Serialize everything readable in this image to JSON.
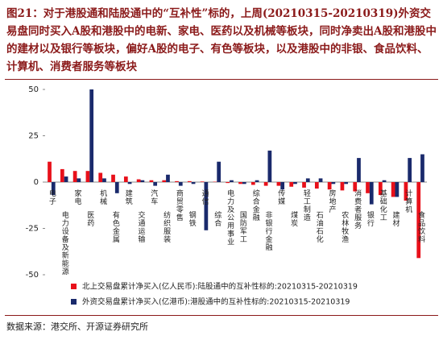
{
  "chart_data": {
    "type": "bar",
    "title": "图21：对于港股通和陆股通中的“互补性”标的，上周(20210315-20210319)外资交易盘同时买入A股和港股中的电新、家电、医药以及机械等板块，同时净卖出A股和港股中的建材以及银行等板块，偏好A股的电子、有色等板块，以及港股中的非银、食品饮料、计算机、消费者服务等板块",
    "categories": [
      "电子",
      "电力设备及新能源",
      "家电",
      "医药",
      "机械",
      "有色金属",
      "建筑",
      "交通运输",
      "汽车",
      "纺织服装",
      "商贸零售",
      "钢铁",
      "通信",
      "综合",
      "电力及公用事业",
      "国防军工",
      "综合金融",
      "非银行金融",
      "传媒",
      "煤炭",
      "轻工制造",
      "石油石化",
      "房地产",
      "农林牧渔",
      "消费者服务",
      "银行",
      "基础化工",
      "建材",
      "计算机",
      "食品饮料"
    ],
    "series": [
      {
        "name": "北上交易盘累计净买入(亿人民币):陆股通中的互补性标的:20210315-20210319",
        "color": "#e8101a",
        "values": [
          11,
          7,
          6,
          6,
          5,
          4,
          3,
          1.5,
          1,
          1,
          0.5,
          0.5,
          0.3,
          0.2,
          -0.5,
          -1,
          -1.5,
          -2,
          -2,
          -2.5,
          -3,
          -3.5,
          -4,
          -4.5,
          -5,
          -6,
          -7,
          -8,
          -10,
          -41
        ]
      },
      {
        "name": "外资交易盘累计净买入(亿港币):港股通中的互补性标的:20210315-20210319",
        "color": "#1a2a6c",
        "values": [
          -7,
          3,
          2,
          50,
          2,
          -6,
          -1,
          1,
          -2,
          4,
          -2,
          -1,
          -26,
          11,
          1,
          -1,
          1,
          17,
          -4,
          -1,
          2,
          2,
          -1,
          -1,
          13,
          -12,
          1,
          -8,
          13,
          15
        ]
      }
    ],
    "ylim": [
      -50,
      50
    ],
    "yticks": [
      50,
      25,
      0,
      -25,
      -50
    ],
    "source": "数据来源：港交所、开源证券研究所"
  }
}
